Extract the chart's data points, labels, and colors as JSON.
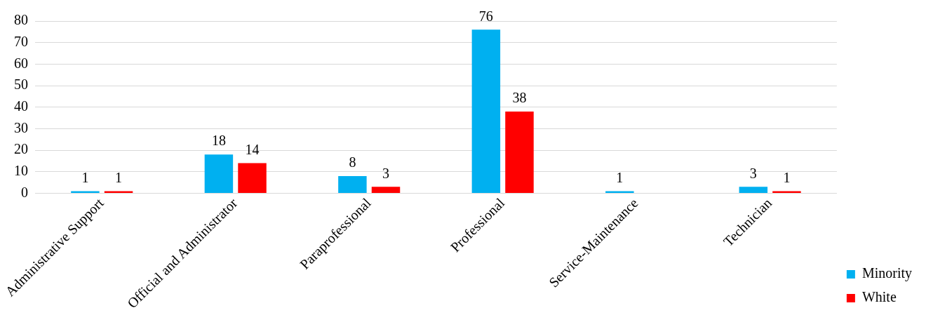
{
  "chart_data": {
    "type": "bar",
    "categories": [
      "Administrative Support",
      "Official and Administrator",
      "Paraprofessional",
      "Professional",
      "Service-Maintenance",
      "Technician"
    ],
    "series": [
      {
        "name": "Minority",
        "color": "#00b0f0",
        "values": [
          1,
          18,
          8,
          76,
          1,
          3
        ]
      },
      {
        "name": "White",
        "color": "#ff0000",
        "values": [
          1,
          14,
          3,
          38,
          null,
          1
        ]
      }
    ],
    "ylim": [
      0,
      80
    ],
    "yticks": [
      0,
      10,
      20,
      30,
      40,
      50,
      60,
      70,
      80
    ],
    "grid": "y",
    "legend": "right",
    "data_labels": true
  }
}
